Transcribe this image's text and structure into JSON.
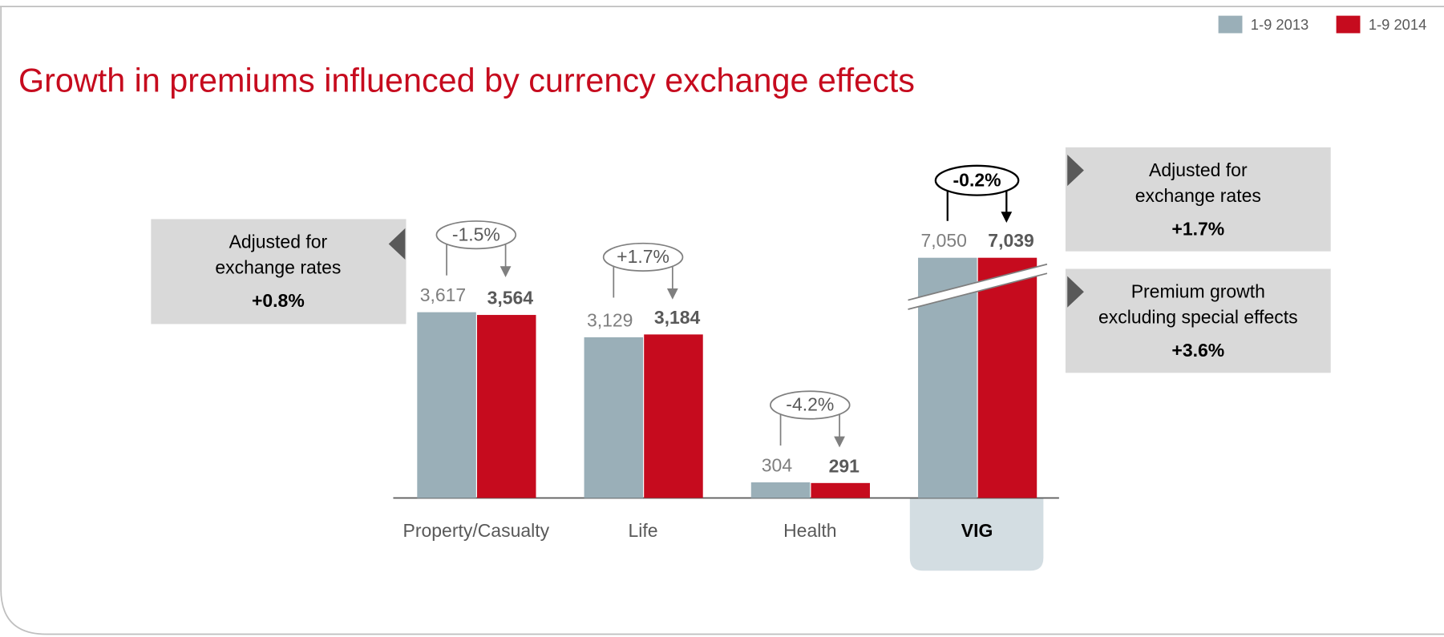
{
  "chart_data": {
    "type": "bar",
    "title": "Growth in premiums influenced by currency exchange effects",
    "categories": [
      "Property/Casualty",
      "Life",
      "Health",
      "VIG"
    ],
    "series": [
      {
        "name": "1-9 2013",
        "color": "#9aafb8",
        "values": [
          3617,
          3129,
          304,
          7050
        ],
        "value_labels": [
          "3,617",
          "3,129",
          "304",
          "7,050"
        ]
      },
      {
        "name": "1-9 2014",
        "color": "#c60b1e",
        "values": [
          3564,
          3184,
          291,
          7039
        ],
        "value_labels": [
          "3,564",
          "3,184",
          "291",
          "7,039"
        ]
      }
    ],
    "growth_labels": [
      "-1.5%",
      "+1.7%",
      "-4.2%",
      "-0.2%"
    ],
    "legend": "top-right",
    "axis_break": true,
    "notes": [
      {
        "lines": [
          "Adjusted for",
          "exchange rates"
        ],
        "value": "+0.8%"
      },
      {
        "lines": [
          "Adjusted for",
          "exchange rates"
        ],
        "value": "+1.7%"
      },
      {
        "lines": [
          "Premium growth",
          "excluding special effects"
        ],
        "value": "+3.6%"
      }
    ]
  }
}
